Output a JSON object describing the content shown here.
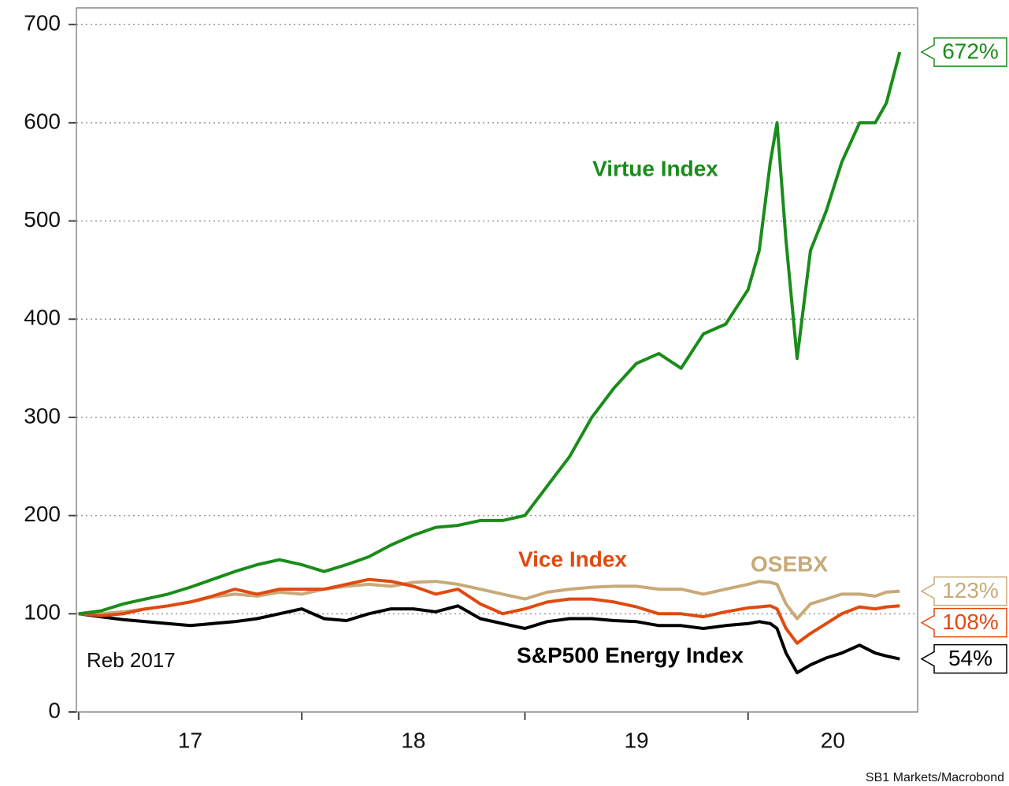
{
  "chart_data": {
    "type": "line",
    "annotations": [
      "Reb 2017",
      "SB1 Markets/Macrobond"
    ],
    "x": [
      17.0,
      17.1,
      17.2,
      17.3,
      17.4,
      17.5,
      17.6,
      17.7,
      17.8,
      17.9,
      18.0,
      18.1,
      18.2,
      18.3,
      18.4,
      18.5,
      18.6,
      18.7,
      18.8,
      18.9,
      19.0,
      19.1,
      19.2,
      19.3,
      19.4,
      19.5,
      19.6,
      19.7,
      19.8,
      19.9,
      20.0,
      20.05,
      20.1,
      20.13,
      20.17,
      20.22,
      20.28,
      20.35,
      20.42,
      20.5,
      20.57,
      20.62,
      20.68
    ],
    "series": [
      {
        "name": "Virtue Index",
        "color": "#1a8c1a",
        "end_label": "672%",
        "values": [
          100,
          103,
          110,
          115,
          120,
          127,
          135,
          143,
          150,
          155,
          150,
          143,
          150,
          158,
          170,
          180,
          188,
          190,
          195,
          195,
          200,
          230,
          260,
          300,
          330,
          355,
          365,
          350,
          385,
          395,
          430,
          470,
          560,
          600,
          480,
          360,
          470,
          510,
          560,
          600,
          600,
          620,
          672
        ]
      },
      {
        "name": "Vice Index",
        "color": "#e04a10",
        "end_label": "108%",
        "values": [
          100,
          98,
          100,
          105,
          108,
          112,
          118,
          125,
          120,
          125,
          125,
          125,
          130,
          135,
          133,
          128,
          120,
          125,
          110,
          100,
          105,
          112,
          115,
          115,
          112,
          107,
          100,
          100,
          97,
          102,
          106,
          107,
          108,
          105,
          85,
          70,
          80,
          90,
          100,
          107,
          105,
          107,
          108
        ]
      },
      {
        "name": "OSEBX",
        "color": "#c8aa78",
        "end_label": "123%",
        "values": [
          100,
          100,
          102,
          105,
          108,
          112,
          117,
          120,
          118,
          122,
          120,
          125,
          128,
          130,
          128,
          132,
          133,
          130,
          125,
          120,
          115,
          122,
          125,
          127,
          128,
          128,
          125,
          125,
          120,
          125,
          130,
          133,
          132,
          130,
          110,
          95,
          110,
          115,
          120,
          120,
          118,
          122,
          123
        ]
      },
      {
        "name": "S&P500 Energy Index",
        "color": "#000000",
        "end_label": "54%",
        "values": [
          100,
          97,
          94,
          92,
          90,
          88,
          90,
          92,
          95,
          100,
          105,
          95,
          93,
          100,
          105,
          105,
          102,
          108,
          95,
          90,
          85,
          92,
          95,
          95,
          93,
          92,
          88,
          88,
          85,
          88,
          90,
          92,
          90,
          85,
          60,
          40,
          48,
          55,
          60,
          68,
          60,
          57,
          54
        ]
      }
    ],
    "xlim": [
      16.99,
      20.76
    ],
    "xticks": [
      17,
      18,
      19,
      20
    ],
    "ylim": [
      0,
      717
    ],
    "yticks": [
      0,
      100,
      200,
      300,
      400,
      500,
      600,
      700
    ],
    "grid": true
  }
}
